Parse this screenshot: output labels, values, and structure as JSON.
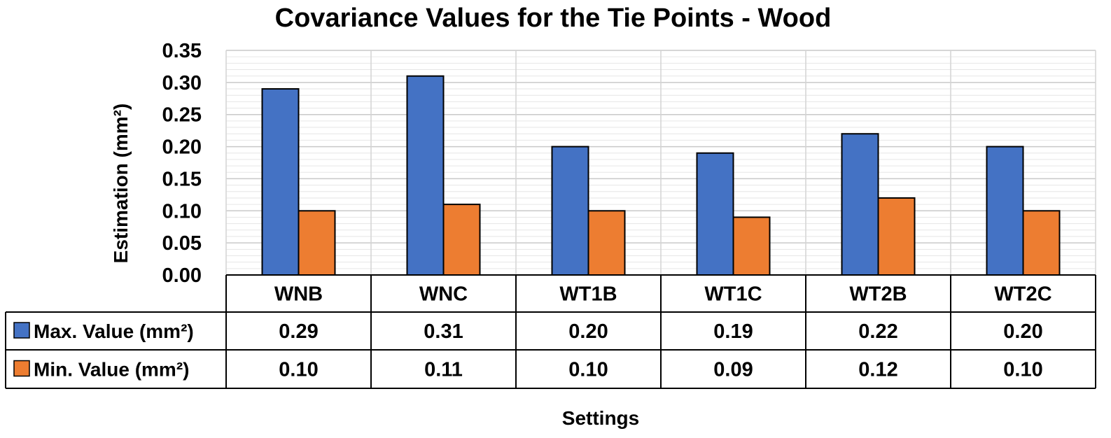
{
  "chart_data": {
    "type": "bar",
    "title": "Covariance Values for the Tie Points - Wood",
    "xlabel": "Settings",
    "ylabel": "Estimation (mm²)",
    "ylim": [
      0,
      0.35
    ],
    "yticks": [
      "0.00",
      "0.05",
      "0.10",
      "0.15",
      "0.20",
      "0.25",
      "0.30",
      "0.35"
    ],
    "grid": true,
    "legend": "data-table",
    "categories": [
      "WNB",
      "WNC",
      "WT1B",
      "WT1C",
      "WT2B",
      "WT2C"
    ],
    "series": [
      {
        "name": "Max. Value (mm²)",
        "color": "#4472C4",
        "values": [
          0.29,
          0.31,
          0.2,
          0.19,
          0.22,
          0.2
        ],
        "labels": [
          "0.29",
          "0.31",
          "0.20",
          "0.19",
          "0.22",
          "0.20"
        ]
      },
      {
        "name": "Min. Value (mm²)",
        "color": "#ED7D31",
        "values": [
          0.1,
          0.11,
          0.1,
          0.09,
          0.12,
          0.1
        ],
        "labels": [
          "0.10",
          "0.11",
          "0.10",
          "0.09",
          "0.12",
          "0.10"
        ]
      }
    ]
  }
}
